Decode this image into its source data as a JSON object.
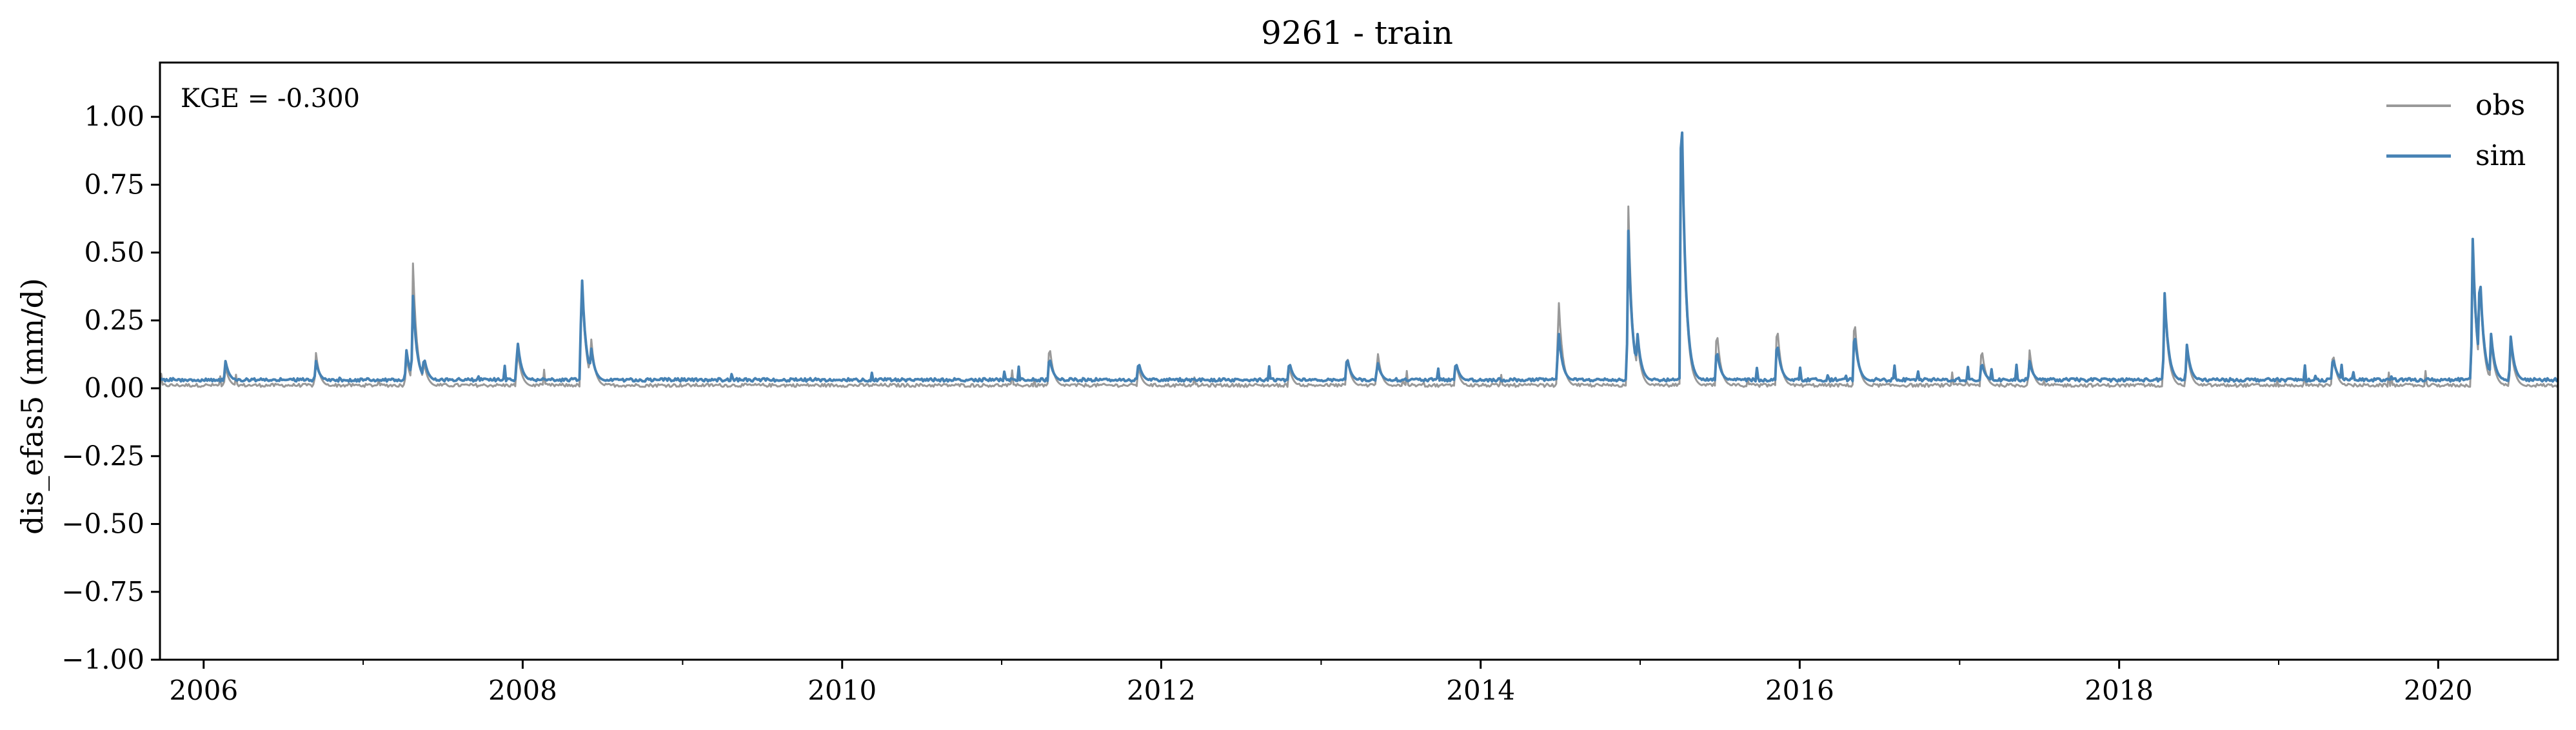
{
  "chart_data": {
    "type": "line",
    "title": "9261 - train",
    "xlabel": "",
    "ylabel": "dis_efas5 (mm/d)",
    "xlim": [
      "2005-09-23",
      "2020-10-01"
    ],
    "ylim": [
      -1.0,
      1.2
    ],
    "yticks": [
      "−1.00",
      "−0.75",
      "−0.50",
      "−0.25",
      "0.00",
      "0.25",
      "0.50",
      "0.75",
      "1.00"
    ],
    "ytick_values": [
      -1.0,
      -0.75,
      -0.5,
      -0.25,
      0.0,
      0.25,
      0.5,
      0.75,
      1.0
    ],
    "xticks": [
      "2006",
      "2008",
      "2010",
      "2012",
      "2014",
      "2016",
      "2018",
      "2020"
    ],
    "xtick_dates": [
      "2006-01-01",
      "2008-01-01",
      "2010-01-01",
      "2012-01-01",
      "2014-01-01",
      "2016-01-01",
      "2018-01-01",
      "2020-01-01"
    ],
    "grid": false,
    "legend_position": "top-right",
    "annotation": "KGE = -0.300",
    "baseline": {
      "obs": 0.005,
      "sim": 0.025
    },
    "series": [
      {
        "name": "obs",
        "color": "#999999",
        "peaks": [
          {
            "date": "2006-02-20",
            "value": 0.08
          },
          {
            "date": "2006-09-15",
            "value": 0.13
          },
          {
            "date": "2007-04-10",
            "value": 0.12
          },
          {
            "date": "2007-04-25",
            "value": 0.46
          },
          {
            "date": "2007-05-20",
            "value": 0.1
          },
          {
            "date": "2007-12-20",
            "value": 0.15
          },
          {
            "date": "2008-05-15",
            "value": 0.43
          },
          {
            "date": "2008-06-05",
            "value": 0.2
          },
          {
            "date": "2011-04-20",
            "value": 0.17
          },
          {
            "date": "2011-11-10",
            "value": 0.08
          },
          {
            "date": "2012-10-20",
            "value": 0.08
          },
          {
            "date": "2013-03-01",
            "value": 0.13
          },
          {
            "date": "2013-05-10",
            "value": 0.14
          },
          {
            "date": "2013-11-05",
            "value": 0.1
          },
          {
            "date": "2014-06-28",
            "value": 0.35
          },
          {
            "date": "2014-12-05",
            "value": 0.67
          },
          {
            "date": "2014-12-25",
            "value": 0.2
          },
          {
            "date": "2015-04-05",
            "value": 1.15
          },
          {
            "date": "2015-06-25",
            "value": 0.23
          },
          {
            "date": "2015-11-10",
            "value": 0.25
          },
          {
            "date": "2016-05-05",
            "value": 0.28
          },
          {
            "date": "2017-02-20",
            "value": 0.16
          },
          {
            "date": "2017-06-10",
            "value": 0.14
          },
          {
            "date": "2018-04-15",
            "value": 0.34
          },
          {
            "date": "2018-06-05",
            "value": 0.15
          },
          {
            "date": "2019-05-05",
            "value": 0.14
          },
          {
            "date": "2020-03-20",
            "value": 0.53
          },
          {
            "date": "2020-04-05",
            "value": 0.44
          },
          {
            "date": "2020-05-01",
            "value": 0.18
          },
          {
            "date": "2020-06-15",
            "value": 0.17
          }
        ]
      },
      {
        "name": "sim",
        "color": "#4682b4",
        "peaks": [
          {
            "date": "2006-02-20",
            "value": 0.1
          },
          {
            "date": "2006-09-15",
            "value": 0.1
          },
          {
            "date": "2007-04-10",
            "value": 0.14
          },
          {
            "date": "2007-04-25",
            "value": 0.34
          },
          {
            "date": "2007-05-20",
            "value": 0.12
          },
          {
            "date": "2007-12-20",
            "value": 0.18
          },
          {
            "date": "2008-05-15",
            "value": 0.44
          },
          {
            "date": "2008-06-05",
            "value": 0.16
          },
          {
            "date": "2011-04-20",
            "value": 0.12
          },
          {
            "date": "2011-11-10",
            "value": 0.1
          },
          {
            "date": "2012-10-20",
            "value": 0.1
          },
          {
            "date": "2013-03-01",
            "value": 0.12
          },
          {
            "date": "2013-05-10",
            "value": 0.1
          },
          {
            "date": "2013-11-05",
            "value": 0.1
          },
          {
            "date": "2014-06-28",
            "value": 0.22
          },
          {
            "date": "2014-12-05",
            "value": 0.58
          },
          {
            "date": "2014-12-25",
            "value": 0.22
          },
          {
            "date": "2015-04-05",
            "value": 1.17
          },
          {
            "date": "2015-06-25",
            "value": 0.15
          },
          {
            "date": "2015-11-10",
            "value": 0.18
          },
          {
            "date": "2016-05-05",
            "value": 0.22
          },
          {
            "date": "2017-02-20",
            "value": 0.1
          },
          {
            "date": "2017-06-10",
            "value": 0.1
          },
          {
            "date": "2018-04-15",
            "value": 0.35
          },
          {
            "date": "2018-06-05",
            "value": 0.16
          },
          {
            "date": "2019-05-05",
            "value": 0.12
          },
          {
            "date": "2020-03-20",
            "value": 0.55
          },
          {
            "date": "2020-04-05",
            "value": 0.46
          },
          {
            "date": "2020-05-01",
            "value": 0.2
          },
          {
            "date": "2020-06-15",
            "value": 0.19
          }
        ]
      }
    ]
  }
}
